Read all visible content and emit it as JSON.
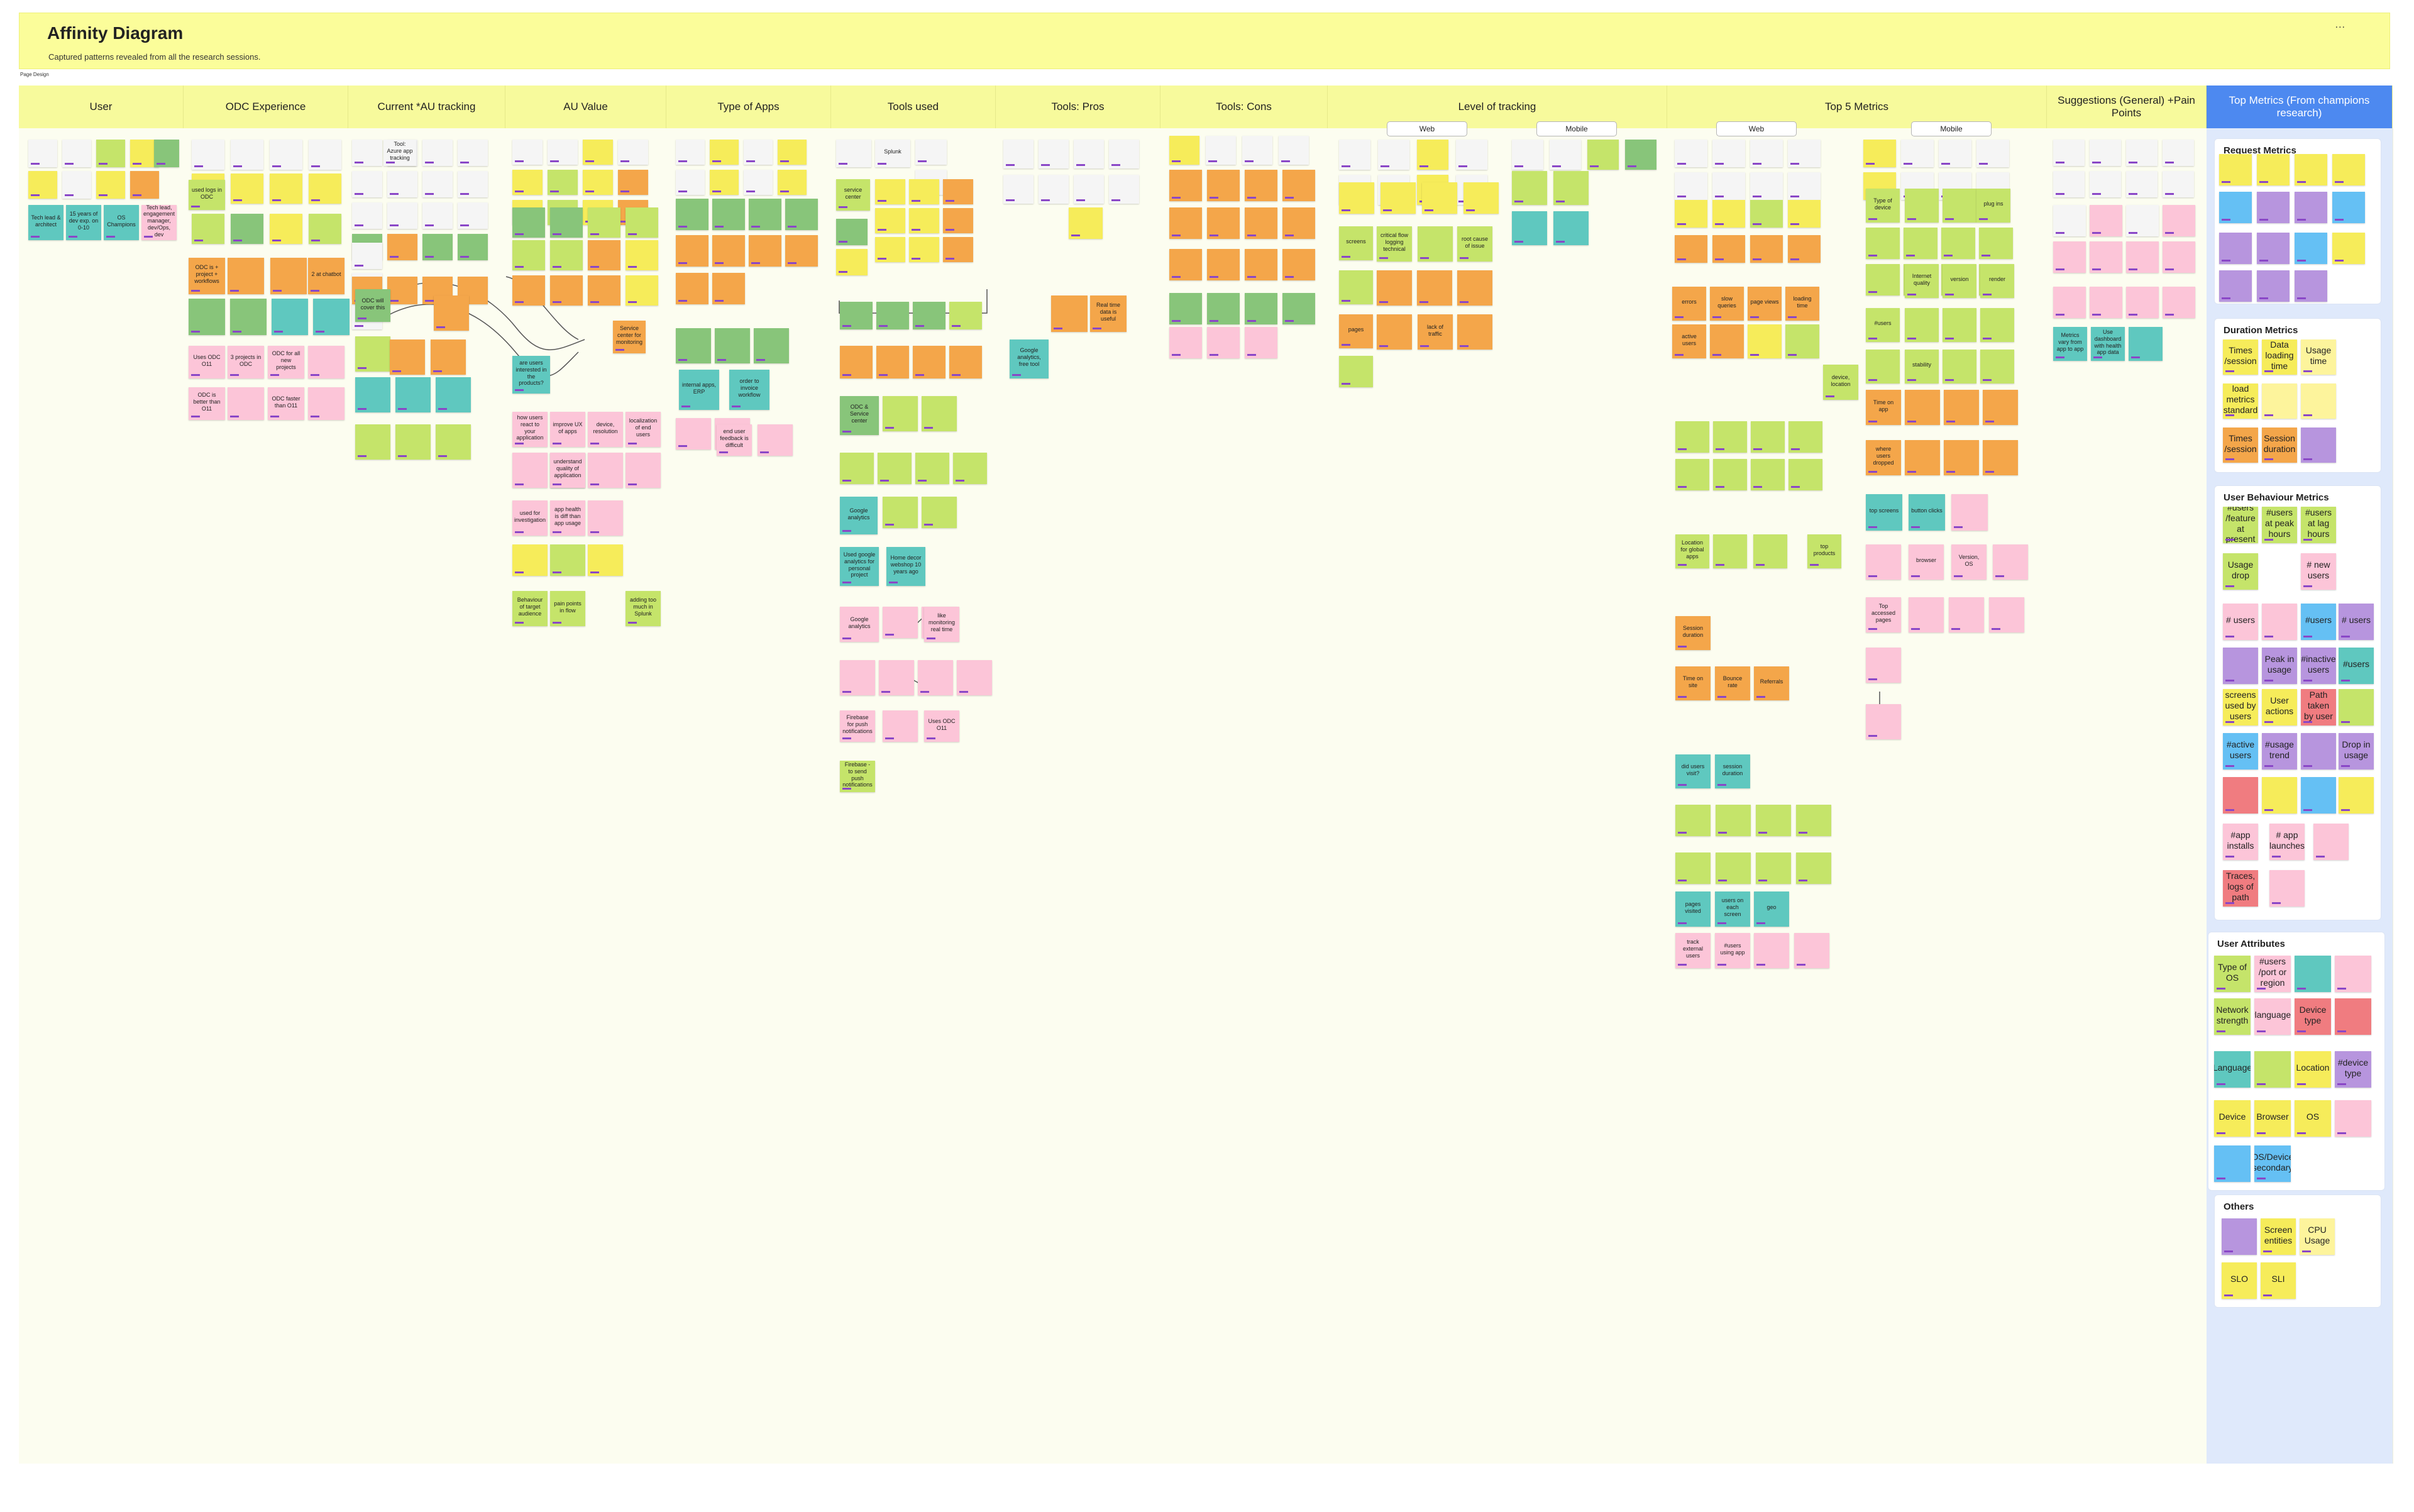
{
  "board": {
    "title": "Affinity Diagram",
    "subtitle": "Captured patterns revealed from all the research sessions.",
    "page_tag": "Page Design",
    "menu": "..."
  },
  "columns": [
    {
      "label": "User"
    },
    {
      "label": "ODC Experience"
    },
    {
      "label": "Current *AU tracking"
    },
    {
      "label": "AU Value"
    },
    {
      "label": "Type of Apps"
    },
    {
      "label": "Tools used"
    },
    {
      "label": "Tools: Pros"
    },
    {
      "label": "Tools: Cons"
    },
    {
      "label": "Level of tracking"
    },
    {
      "label": "Top 5 Metrics"
    },
    {
      "label": "Suggestions (General) +Pain Points"
    },
    {
      "label": "Top Metrics (From champions research)"
    }
  ],
  "subtags": {
    "web": "Web",
    "mobile": "Mobile"
  },
  "readable_notes": {
    "user": [
      "Tech lead & architect",
      "15 years of dev exp. on 0-10",
      "OS Champions",
      "Tech lead, engagement manager, dev/Ops, dev"
    ],
    "odc": [
      "used logs in ODC",
      "ODC is + create & tweaks apps",
      "ODC is + project + workflows",
      "2 at chatbot",
      "Uses ODC O11",
      "3 projects in ODC",
      "ODC for all new projects",
      "ODC is better than O11",
      "ODC faster than O11"
    ],
    "current": [
      "Tool: Azure app tracking",
      "ODC will cover this",
      "Service center",
      "Reached monitoring"
    ],
    "au_value": [
      "are users interested in the products?",
      "how users react to your application",
      "improve UX of apps",
      "device, resolution",
      "localization of end users",
      "understand quality of application",
      "used for investigation",
      "app health is diff than app usage",
      "Behaviour of target audience",
      "pain points in flow",
      "adding too much in Splunk",
      "Service center for monitoring"
    ],
    "apps": [
      "internal apps, ERP",
      "order to invoice workflow",
      "B2C app maintaining",
      "end user feedback is difficult"
    ],
    "tools": [
      "Splunk",
      "service center",
      "ODC & Service center",
      "Google analytics",
      "Used google analytics for personal project",
      "Home decor webshop 10 years ago",
      "Google analytics",
      "like monitoring real time",
      "Firebase for push notifications",
      "Uses ODC O11",
      "Firebase - to send push notifications"
    ],
    "pros": [
      "Google analytics, free tool",
      "Real time data is useful"
    ],
    "level": [
      "screens",
      "pages",
      "lack of traffic",
      "root cause of issue",
      "critical flow logging technical"
    ],
    "top5_web": [
      "errors",
      "slow queries",
      "page views",
      "loading time",
      "active users",
      "device, location",
      "Session duration",
      "Time on site",
      "Bounce rate",
      "Referrals",
      "did users visit?",
      "session duration",
      "pages visited",
      "users on each screen",
      "geo",
      "track external users",
      "#users using app",
      "top products",
      "Location for global apps"
    ],
    "top5_mobile": [
      "Type of device",
      "plug ins",
      "#users",
      "stability",
      "Internet quality",
      "version",
      "render",
      "Time on app",
      "where users dropped",
      "top screens",
      "button clicks",
      "browser",
      "Version, OS",
      "Top accessed pages"
    ],
    "suggestions": [
      "Metrics vary from app to app",
      "Use dashboard with health app data"
    ]
  },
  "top_metrics": {
    "request": {
      "title": "Request Metrics"
    },
    "duration": {
      "title": "Duration Metrics",
      "items": [
        "Times /session",
        "Data loading time",
        "Usage time",
        "load metrics standard",
        "Times /session",
        "Session duration"
      ]
    },
    "behaviour": {
      "title": "User Behaviour Metrics",
      "items": [
        "#users /feature at present",
        "#users at peak hours",
        "#users at lag hours",
        "Usage drop",
        "# new users",
        "# users",
        "#users",
        "# users",
        "Peak in usage",
        "#inactive users",
        "#users",
        "screens used by users",
        "User actions",
        "Path taken by user",
        "#active users",
        "#usage trend",
        "Drop in usage",
        "#app installs",
        "# app launches",
        "Traces, logs of path"
      ]
    },
    "attributes": {
      "title": "User Attributes",
      "items": [
        "Type of OS",
        "#users /port or region",
        "Network strength",
        "Device type",
        "Location",
        "#device type",
        "Device",
        "Browser",
        "OS",
        "#languages",
        "Language",
        "OS/Device secondary"
      ]
    },
    "others": {
      "title": "Others",
      "items": [
        "Screen entities",
        "CPU Usage",
        "SLO",
        "SLI"
      ]
    }
  },
  "palette": {
    "header": "#fbfd9a",
    "column_head": "#f7fa9c",
    "top_metrics_head": "#4d89f0",
    "top_metrics_body": "#dfe9fb",
    "yellow": "#f6ec5a",
    "green": "#c5e46a",
    "dark_green": "#88c57a",
    "orange": "#f4a64a",
    "pink": "#fcc5d8",
    "teal": "#5fc8bf",
    "purple": "#b795de",
    "red": "#f07c80",
    "blue": "#65c0f4"
  }
}
